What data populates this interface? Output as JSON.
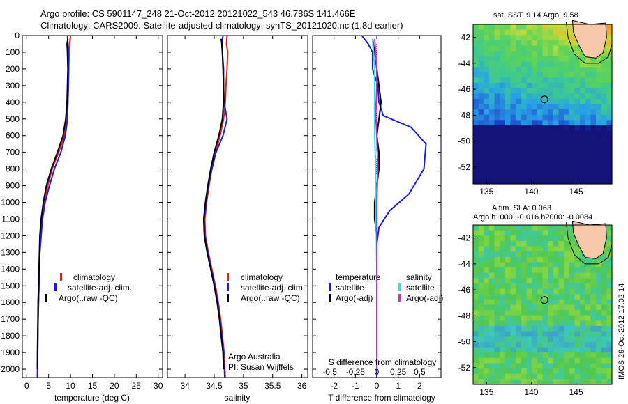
{
  "title_line1": "Argo profile: CS 5901147_248 21-Oct-2012 20121022_543 46.786S 141.466E",
  "title_line2": "Climatology: CARS2009. Satellite-adjusted climatology: synTS_20121020.nc (1.8d earlier)",
  "side_stamp": "IMOS 29-Oct-2012 17:02:14",
  "attribution": {
    "line1": "Argo Australia",
    "line2": "PI: Susan Wijffels"
  },
  "colors": {
    "climatology": "#e0201a",
    "satellite": "#1a1ae0",
    "argo": "#000000",
    "sat_salinity": "#22e8e8",
    "argo_salinity": "#e020e0"
  },
  "depth_ticks": [
    0,
    100,
    200,
    300,
    400,
    500,
    600,
    700,
    800,
    900,
    1000,
    1100,
    1200,
    1300,
    1400,
    1500,
    1600,
    1700,
    1800,
    1900,
    2000
  ],
  "chart_data": [
    {
      "type": "line",
      "xlabel": "temperature (deg C)",
      "xlim": [
        -1,
        31
      ],
      "ylim": [
        2050,
        0
      ],
      "x_ticks": [
        0,
        5,
        10,
        15,
        20,
        25,
        30
      ],
      "legend": [
        "climatology",
        "satellite-adj. clim.",
        "Argo(..raw -QC)"
      ],
      "series": [
        {
          "name": "climatology",
          "color": "#e0201a",
          "x": [
            10.0,
            9.8,
            9.7,
            9.6,
            9.5,
            9.4,
            9.2,
            8.6,
            7.3,
            5.8,
            4.8,
            4.0,
            3.5,
            3.2,
            3.0,
            2.9,
            2.8,
            2.7,
            2.6,
            2.55,
            2.5,
            2.45
          ],
          "y": [
            0,
            50,
            100,
            200,
            300,
            400,
            500,
            600,
            700,
            800,
            900,
            1000,
            1100,
            1200,
            1300,
            1400,
            1500,
            1600,
            1700,
            1800,
            1900,
            2050
          ]
        },
        {
          "name": "satellite-adj. clim.",
          "color": "#1a1ae0",
          "x": [
            9.3,
            9.4,
            9.5,
            9.5,
            9.5,
            9.4,
            9.3,
            8.8,
            7.8,
            6.3,
            5.2,
            4.2,
            3.6,
            3.3,
            3.0,
            2.9,
            2.8,
            2.7,
            2.6,
            2.55,
            2.5,
            2.45
          ],
          "y": [
            0,
            50,
            100,
            200,
            300,
            400,
            500,
            600,
            700,
            800,
            900,
            1000,
            1100,
            1200,
            1300,
            1400,
            1500,
            1600,
            1700,
            1800,
            1900,
            2050
          ]
        },
        {
          "name": "Argo(..raw -QC)",
          "color": "#000000",
          "x": [
            9.4,
            9.2,
            9.3,
            9.4,
            9.3,
            9.2,
            8.9,
            8.3,
            7.0,
            5.6,
            4.5,
            3.8,
            3.3,
            3.0,
            2.9,
            2.8,
            2.7,
            2.6,
            2.55,
            2.5,
            2.45,
            2.45
          ],
          "y": [
            20,
            50,
            100,
            200,
            300,
            400,
            500,
            600,
            700,
            800,
            900,
            1000,
            1100,
            1200,
            1300,
            1400,
            1500,
            1600,
            1700,
            1800,
            1900,
            2000
          ]
        }
      ]
    },
    {
      "type": "line",
      "xlabel": "salinity",
      "xlim": [
        33.7,
        36.1
      ],
      "ylim": [
        2050,
        0
      ],
      "x_ticks": [
        34,
        34.5,
        35,
        35.5,
        36
      ],
      "legend": [
        "climatology",
        "satellite-adj. clim.",
        "Argo(..raw -QC)"
      ],
      "series": [
        {
          "name": "climatology",
          "color": "#e0201a",
          "x": [
            34.72,
            34.71,
            34.73,
            34.72,
            34.7,
            34.69,
            34.66,
            34.6,
            34.52,
            34.46,
            34.41,
            34.37,
            34.34,
            34.35,
            34.4,
            34.46,
            34.52,
            34.57,
            34.61,
            34.64,
            34.67,
            34.69
          ],
          "y": [
            0,
            50,
            100,
            200,
            300,
            400,
            500,
            600,
            700,
            800,
            900,
            1000,
            1100,
            1200,
            1300,
            1400,
            1500,
            1600,
            1700,
            1800,
            1900,
            2050
          ]
        },
        {
          "name": "satellite-adj. clim.",
          "color": "#1a1ae0",
          "x": [
            34.65,
            34.63,
            34.64,
            34.66,
            34.66,
            34.67,
            34.72,
            34.65,
            34.53,
            34.46,
            34.4,
            34.36,
            34.33,
            34.34,
            34.39,
            34.45,
            34.51,
            34.56,
            34.6,
            34.63,
            34.66,
            34.68
          ],
          "y": [
            0,
            50,
            100,
            200,
            300,
            400,
            500,
            600,
            700,
            800,
            900,
            1000,
            1100,
            1200,
            1300,
            1400,
            1500,
            1600,
            1700,
            1800,
            1900,
            2050
          ]
        },
        {
          "name": "Argo(..raw -QC)",
          "color": "#000000",
          "x": [
            34.62,
            34.63,
            34.64,
            34.65,
            34.66,
            34.66,
            34.64,
            34.58,
            34.5,
            34.44,
            34.39,
            34.35,
            34.32,
            34.33,
            34.38,
            34.44,
            34.5,
            34.55,
            34.59,
            34.62,
            34.65,
            34.66
          ],
          "y": [
            20,
            50,
            100,
            200,
            300,
            400,
            500,
            600,
            700,
            800,
            900,
            1000,
            1100,
            1200,
            1300,
            1400,
            1500,
            1600,
            1700,
            1800,
            1900,
            2000
          ]
        }
      ]
    },
    {
      "type": "line",
      "xlabel": "T difference from climatology",
      "xlabel_top": "S difference from climatology",
      "xlim": [
        -3,
        3
      ],
      "ylim": [
        2050,
        0
      ],
      "x_ticks": [
        -2,
        -1,
        0,
        1,
        2
      ],
      "x_ticks_top": [
        -0.5,
        -0.25,
        0,
        0.25,
        0.5
      ],
      "legend_left_title": "temperature",
      "legend_right_title": "salinity",
      "legend": [
        "satellite",
        "Argo(-adj)",
        "satellite",
        "Argo(-adj)"
      ],
      "series": [
        {
          "name": "temperature satellite",
          "color": "#1a1ae0",
          "x": [
            -0.7,
            -0.4,
            -0.2,
            -0.2,
            0.05,
            0.1,
            0.3,
            1.6,
            2.3,
            2.2,
            1.5,
            0.6,
            0.1,
            0.0,
            0.0,
            0.0,
            0.0,
            0.0,
            0.0,
            0.0,
            0.0
          ],
          "y": [
            0,
            50,
            100,
            200,
            300,
            400,
            480,
            550,
            650,
            800,
            950,
            1050,
            1150,
            1250,
            1400,
            1550,
            1700,
            1800,
            1900,
            2000,
            2050
          ]
        },
        {
          "name": "temperature Argo(-adj)",
          "color": "#000000",
          "x": [
            -0.2,
            -0.1,
            0.0,
            0.1,
            0.2,
            0.1,
            0.0,
            0.1,
            0.1,
            0.0,
            -0.1,
            -0.1,
            0.0,
            0.0,
            0.0,
            0.0,
            0.0
          ],
          "y": [
            20,
            100,
            200,
            300,
            400,
            500,
            600,
            700,
            800,
            900,
            1000,
            1100,
            1200,
            1400,
            1600,
            1800,
            2000
          ]
        },
        {
          "name": "salinity satellite",
          "color": "#22e8e8",
          "x": [
            -0.2,
            -0.15,
            -0.1,
            -0.1,
            -0.1,
            -0.05,
            -0.05,
            -0.02,
            0.0,
            0.0,
            0.0,
            0.0,
            0.0
          ],
          "y": [
            20,
            100,
            200,
            400,
            600,
            800,
            1000,
            1200,
            1400,
            1600,
            1800,
            1900,
            2000
          ]
        },
        {
          "name": "salinity Argo(-adj)",
          "color": "#e020e0",
          "x": [
            -0.1,
            -0.05,
            0.0,
            0.0,
            -0.05,
            0.0,
            0.05,
            0.0,
            0.0,
            0.0,
            0.0
          ],
          "y": [
            20,
            100,
            200,
            300,
            480,
            600,
            800,
            1000,
            1300,
            1600,
            2000
          ]
        }
      ]
    },
    {
      "type": "heatmap",
      "title": "sat. SST: 9.14 Argo: 9.58",
      "xlim": [
        133.5,
        149
      ],
      "ylim": [
        -53.3,
        -41
      ],
      "x_ticks": [
        135,
        140,
        145
      ],
      "y_ticks": [
        -42,
        -44,
        -46,
        -48,
        -50,
        -52
      ],
      "marker": {
        "lon": 141.466,
        "lat": -46.786
      }
    },
    {
      "type": "heatmap",
      "title": "Altim. SLA: 0.063",
      "subtitle": "Argo h1000: -0.016 h2000: -0.0084",
      "xlim": [
        133.5,
        149
      ],
      "ylim": [
        -53.3,
        -41
      ],
      "x_ticks": [
        135,
        140,
        145
      ],
      "y_ticks": [
        -42,
        -44,
        -46,
        -48,
        -50,
        -52
      ],
      "marker": {
        "lon": 141.466,
        "lat": -46.786
      }
    }
  ]
}
